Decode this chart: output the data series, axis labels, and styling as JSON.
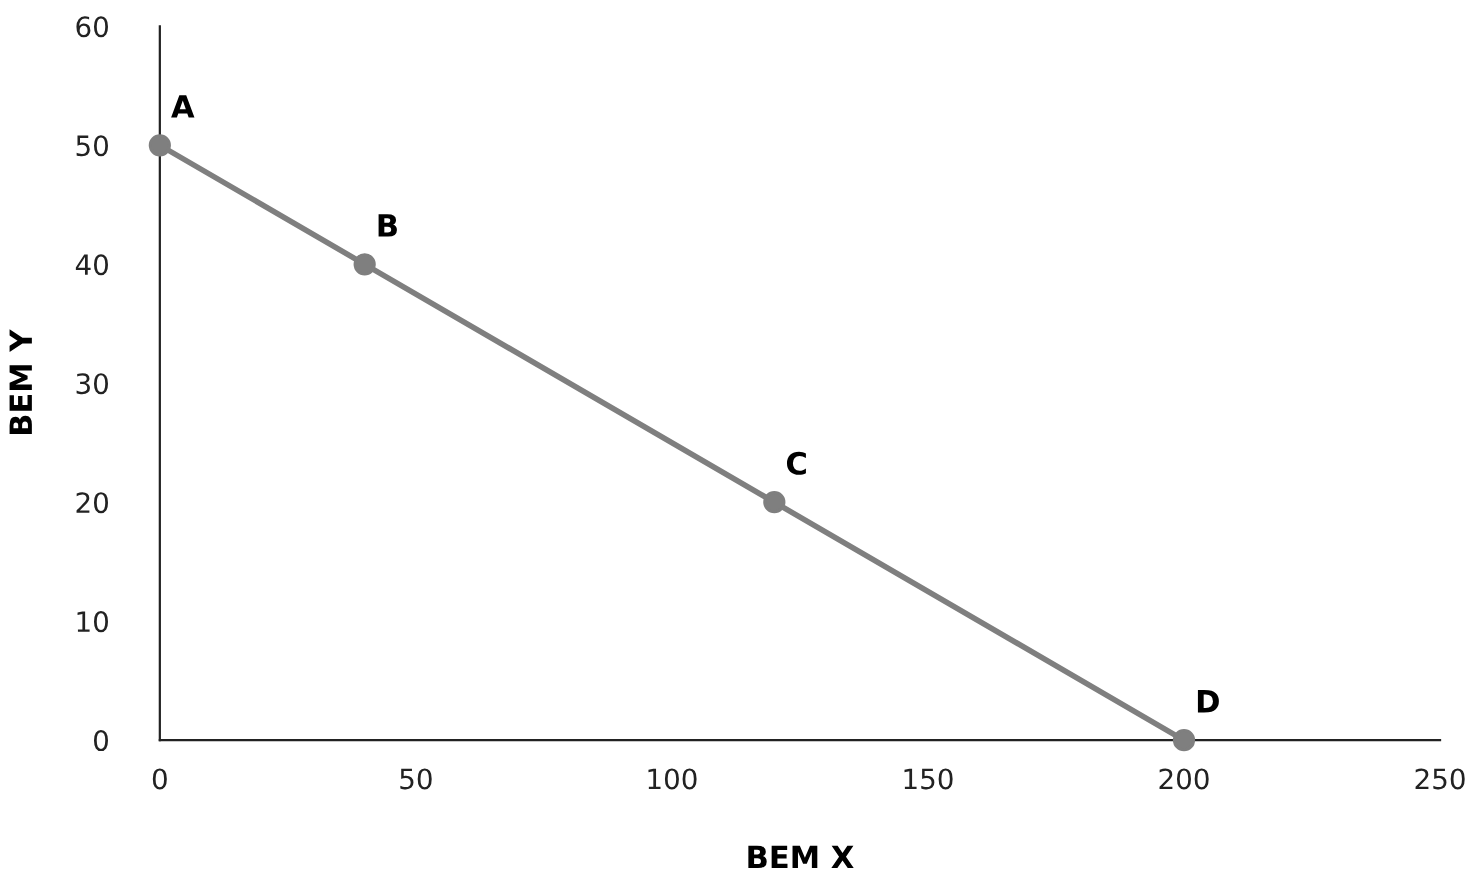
{
  "chart_data": {
    "type": "line",
    "xlabel": "BEM X",
    "ylabel": "BEM Y",
    "x": [
      0,
      40,
      120,
      200
    ],
    "series": [
      {
        "color": "#7f7f7f",
        "values": [
          50,
          40,
          20,
          0
        ]
      }
    ],
    "marker": "circle",
    "line_style": "solid",
    "xlim": [
      0,
      250
    ],
    "xticks": [
      0,
      50,
      100,
      150,
      200,
      250
    ],
    "ylim": [
      0,
      60
    ],
    "yticks": [
      0,
      10,
      20,
      30,
      40,
      50,
      60
    ],
    "grid": false,
    "legend": false,
    "annotations": [
      {
        "text": "A",
        "x": 0,
        "y": 50
      },
      {
        "text": "B",
        "x": 40,
        "y": 40
      },
      {
        "text": "C",
        "x": 120,
        "y": 20
      },
      {
        "text": "D",
        "x": 200,
        "y": 0
      }
    ]
  }
}
